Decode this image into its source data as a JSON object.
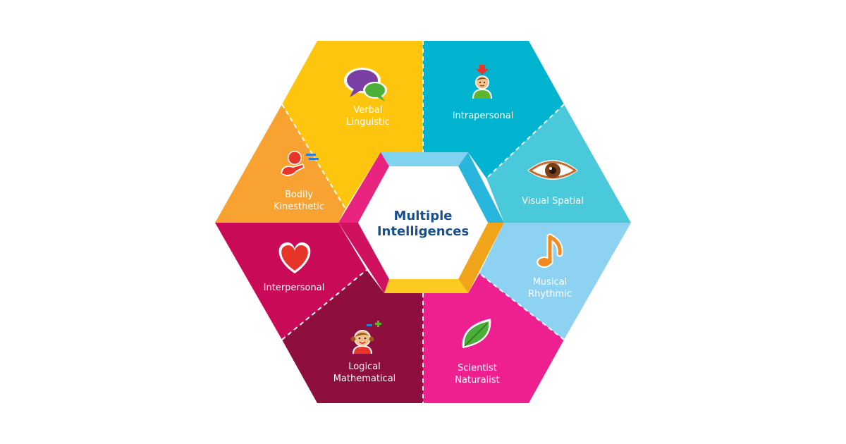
{
  "center": {
    "title_line1": "Multiple",
    "title_line2": "Intelligences"
  },
  "segments": [
    {
      "id": "verbal",
      "line1": "Verbal",
      "line2": "Linguistic",
      "icon": "speech-bubbles-icon",
      "color": "#fdc50e"
    },
    {
      "id": "intrapersonal",
      "line1": "Intrapersonal",
      "line2": "",
      "icon": "thinking-person-icon",
      "color": "#00b3cf"
    },
    {
      "id": "visual",
      "line1": "Visual Spatial",
      "line2": "",
      "icon": "eye-icon",
      "color": "#49c9da"
    },
    {
      "id": "musical",
      "line1": "Musical",
      "line2": "Rhythmic",
      "icon": "music-note-icon",
      "color": "#8ed2f2"
    },
    {
      "id": "naturalist",
      "line1": "Scientist",
      "line2": "Naturalist",
      "icon": "leaf-icon",
      "color": "#ee1f8e"
    },
    {
      "id": "logical",
      "line1": "Logical",
      "line2": "Mathematical",
      "icon": "girl-math-icon",
      "color": "#8e0f3d"
    },
    {
      "id": "interpersonal",
      "line1": "Interpersonal",
      "line2": "",
      "icon": "heart-icon",
      "color": "#c90a58"
    },
    {
      "id": "bodily",
      "line1": "Bodily",
      "line2": "Kinesthetic",
      "icon": "running-person-icon",
      "color": "#f7a231"
    }
  ]
}
